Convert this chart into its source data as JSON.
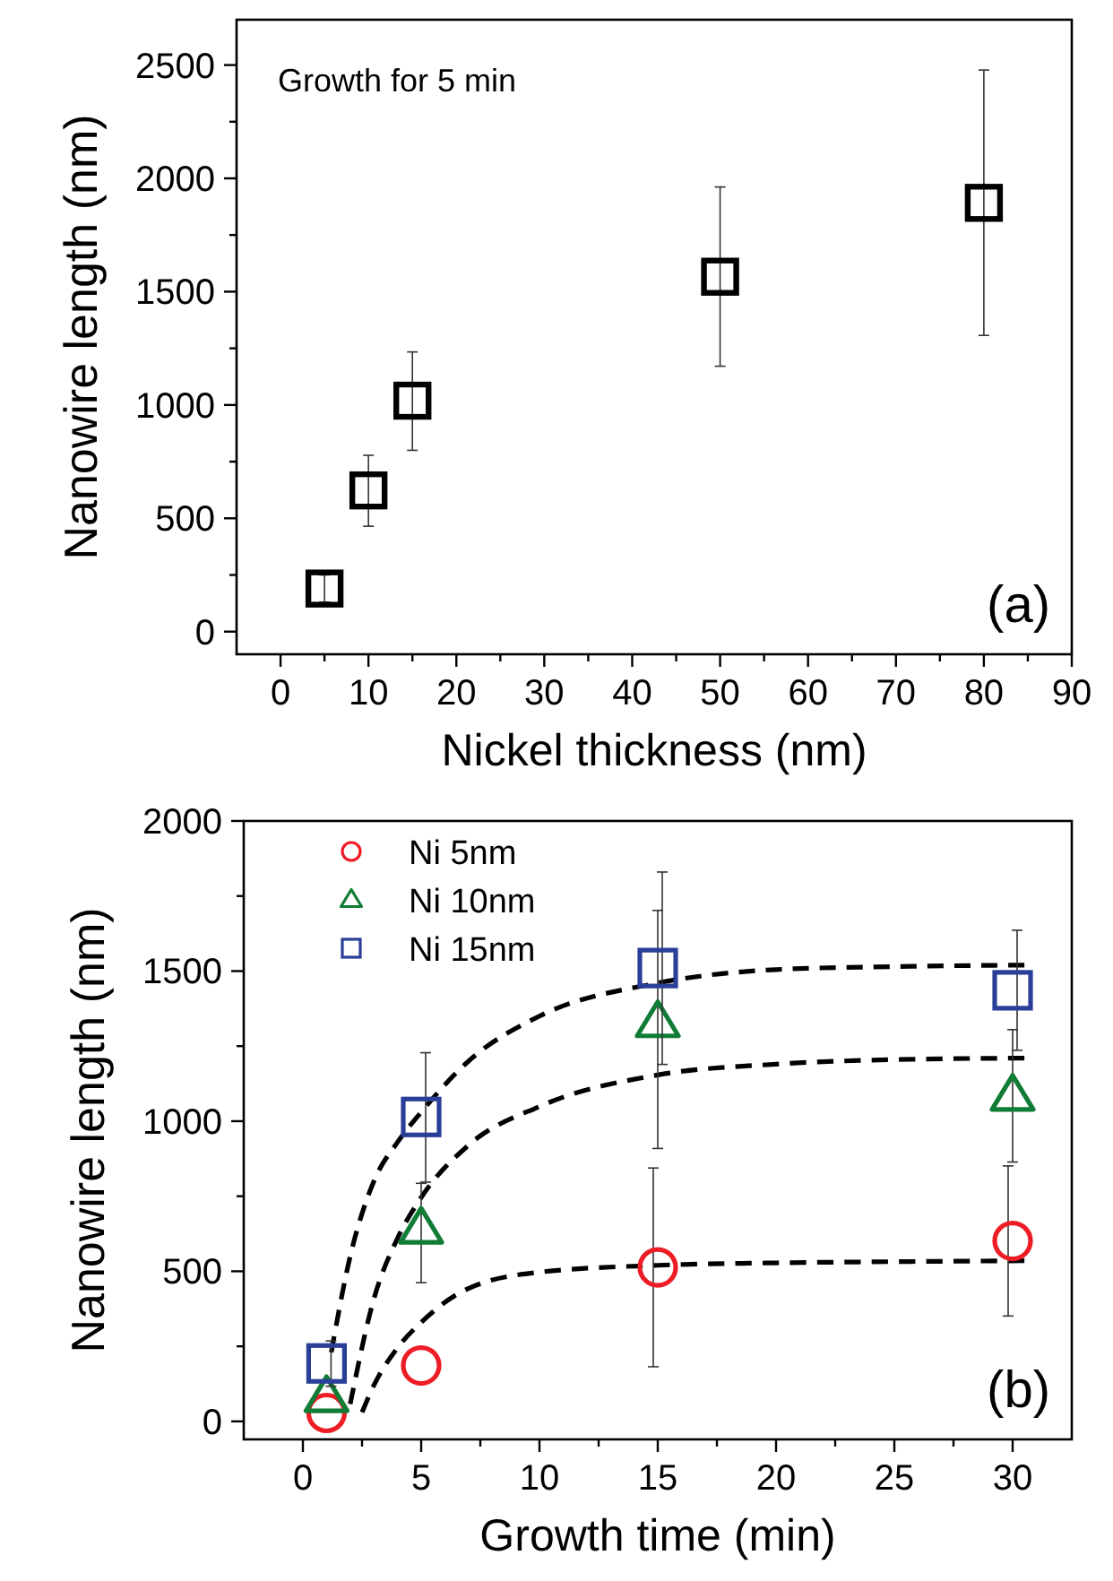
{
  "chart_data": [
    {
      "type": "scatter",
      "xlabel": "Nickel thickness (nm)",
      "ylabel": "Nanowire length (nm)",
      "x": [
        5,
        10,
        15,
        50,
        80
      ],
      "series": [
        {
          "color": "#000000",
          "marker": "square",
          "values": [
            190,
            623,
            1019,
            1566,
            1892
          ],
          "errors": [
            [
              130,
              250
            ],
            [
              465,
              778
            ],
            [
              800,
              1234
            ],
            [
              1171,
              1962
            ],
            [
              1307,
              2478
            ]
          ]
        }
      ],
      "xlim": [
        -5,
        90
      ],
      "ylim": [
        -100,
        2700
      ],
      "xticks": [
        0,
        {
          "value": 5,
          "label": null
        },
        10,
        {
          "value": 15,
          "label": null
        },
        20,
        {
          "value": 25,
          "label": null
        },
        30,
        {
          "value": 35,
          "label": null
        },
        40,
        {
          "value": 45,
          "label": null
        },
        50,
        {
          "value": 55,
          "label": null
        },
        60,
        {
          "value": 65,
          "label": null
        },
        70,
        {
          "value": 75,
          "label": null
        },
        80,
        {
          "value": 85,
          "label": null
        },
        90
      ],
      "yticks": [
        0,
        {
          "value": 250,
          "label": null
        },
        500,
        {
          "value": 750,
          "label": null
        },
        1000,
        {
          "value": 1250,
          "label": null
        },
        1500,
        {
          "value": 1750,
          "label": null
        },
        2000,
        {
          "value": 2250,
          "label": null
        },
        2500
      ],
      "grid": false,
      "legend": false,
      "annotations": [
        "Growth for 5 min",
        "(a)"
      ]
    },
    {
      "type": "scatter",
      "xlabel": "Growth time (min)",
      "ylabel": "Nanowire length (nm)",
      "x": [
        1,
        5,
        15,
        30
      ],
      "series": [
        {
          "name": "Ni 5nm",
          "color": "#ee1c25",
          "marker": "circle",
          "values": [
            28,
            186,
            513,
            601
          ],
          "errors": [
            null,
            null,
            [
              182,
              844
            ],
            [
              351,
              851
            ]
          ]
        },
        {
          "name": "Ni 10nm",
          "color": "#117c35",
          "marker": "triangle",
          "values": [
            80,
            641,
            1329,
            1084
          ],
          "errors": [
            null,
            [
              462,
              793
            ],
            [
              909,
              1702
            ],
            [
              864,
              1305
            ]
          ]
        },
        {
          "name": "Ni 15nm",
          "color": "#2a3f98",
          "marker": "square",
          "values": [
            193,
            1014,
            1510,
            1436
          ],
          "errors": [
            [
              117,
              268
            ],
            [
              797,
              1228
            ],
            [
              1189,
              1830
            ],
            [
              1236,
              1636
            ]
          ]
        },
        {
          "type": "line",
          "color": "#000000",
          "line_style": "dashed",
          "marker": "none",
          "x": [
            2.5,
            3,
            4,
            5,
            7,
            10,
            15,
            20,
            25,
            30.5
          ],
          "values": [
            30,
            120,
            245,
            330,
            443,
            497,
            520,
            528,
            532,
            535
          ]
        },
        {
          "type": "line",
          "color": "#000000",
          "line_style": "dashed",
          "marker": "none",
          "x": [
            2,
            3,
            4,
            5,
            7,
            10,
            15,
            20,
            25,
            30.5
          ],
          "values": [
            58,
            408,
            610,
            746,
            920,
            1049,
            1154,
            1190,
            1205,
            1210
          ]
        },
        {
          "type": "line",
          "color": "#000000",
          "line_style": "dashed",
          "marker": "none",
          "x": [
            1.2,
            2,
            3,
            4,
            5,
            7,
            10,
            15,
            20,
            25,
            30.5
          ],
          "values": [
            230,
            550,
            800,
            930,
            1030,
            1200,
            1350,
            1460,
            1505,
            1515,
            1520
          ]
        }
      ],
      "xlim": [
        -2.5,
        32.5
      ],
      "ylim": [
        -60,
        2000
      ],
      "xticks": [
        0,
        {
          "value": 2.5,
          "label": null
        },
        5,
        {
          "value": 7.5,
          "label": null
        },
        10,
        {
          "value": 12.5,
          "label": null
        },
        15,
        {
          "value": 17.5,
          "label": null
        },
        20,
        {
          "value": 22.5,
          "label": null
        },
        25,
        {
          "value": 27.5,
          "label": null
        },
        30
      ],
      "yticks": [
        0,
        {
          "value": 250,
          "label": null
        },
        500,
        {
          "value": 750,
          "label": null
        },
        1000,
        {
          "value": 1250,
          "label": null
        },
        1500,
        {
          "value": 1750,
          "label": null
        },
        2000
      ],
      "grid": false,
      "legend": "top left",
      "annotations": [
        "(b)"
      ]
    }
  ]
}
